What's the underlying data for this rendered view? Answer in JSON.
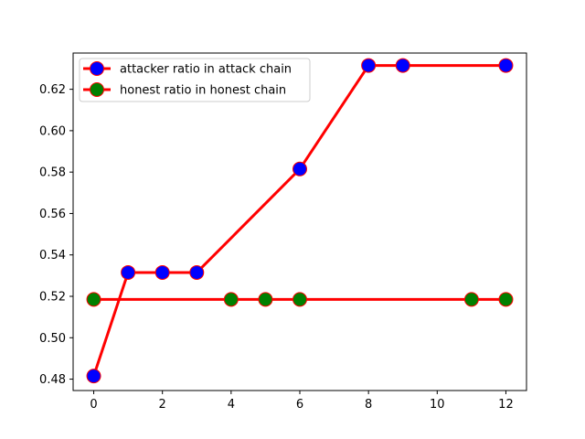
{
  "chart_data": {
    "type": "line",
    "title": "",
    "xlabel": "",
    "ylabel": "",
    "xlim": [
      -0.6,
      12.6
    ],
    "ylim": [
      0.4745,
      0.6375
    ],
    "xticks": [
      0,
      2,
      4,
      6,
      8,
      10,
      12
    ],
    "yticks": [
      0.48,
      0.5,
      0.52,
      0.54,
      0.56,
      0.58,
      0.6,
      0.62
    ],
    "grid": false,
    "legend_position": "top-left",
    "series": [
      {
        "name": "attacker ratio in attack chain",
        "line_color": "#ff0000",
        "marker_face": "#0000ff",
        "marker_edge": "#ff0000",
        "x": [
          0,
          1,
          2,
          3,
          6,
          8,
          9,
          12
        ],
        "y": [
          0.4815,
          0.5315,
          0.5315,
          0.5315,
          0.5815,
          0.6315,
          0.6315,
          0.6315
        ]
      },
      {
        "name": "honest ratio in honest chain",
        "line_color": "#ff0000",
        "marker_face": "#008000",
        "marker_edge": "#ff0000",
        "x": [
          0,
          4,
          5,
          6,
          11,
          12
        ],
        "y": [
          0.5185,
          0.5185,
          0.5185,
          0.5185,
          0.5185,
          0.5185
        ]
      }
    ]
  }
}
